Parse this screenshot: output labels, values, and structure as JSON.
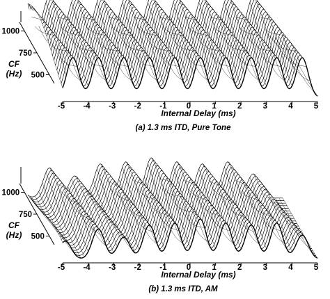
{
  "chart_data": [
    {
      "type": "surface",
      "caption": "(a) 1.3 ms ITD, Pure Tone",
      "xlabel": "Internal Delay (ms)",
      "ylabel": [
        "CF",
        "(Hz)"
      ],
      "x_ticks": [
        "-5",
        "-4",
        "-3",
        "-2",
        "-1",
        "0",
        "1",
        "2",
        "3",
        "4",
        "5"
      ],
      "y_ticks": [
        "1000",
        "750",
        "500"
      ],
      "xlim": [
        -5,
        5
      ],
      "y_tick_values": [
        1000,
        750,
        500
      ],
      "peaks_at_top_cf_ms": [
        -4.6,
        -3.6,
        -2.6,
        -1.6,
        -0.6,
        0.4,
        1.4,
        2.4,
        3.4,
        4.4
      ],
      "peak_heights": [
        1,
        1,
        1,
        1,
        1,
        1,
        1,
        1,
        1,
        1
      ]
    },
    {
      "type": "surface",
      "caption": "(b) 1.3 ms ITD, AM",
      "xlabel": "Internal Delay (ms)",
      "ylabel": [
        "CF",
        "(Hz)"
      ],
      "x_ticks": [
        "-5",
        "-4",
        "-3",
        "-2",
        "-1",
        "0",
        "1",
        "2",
        "3",
        "4",
        "5"
      ],
      "y_ticks": [
        "1000",
        "750",
        "500"
      ],
      "xlim": [
        -5,
        5
      ],
      "y_tick_values": [
        1000,
        750,
        500
      ],
      "peaks_at_top_cf_ms": [
        -4.9,
        -3.6,
        -2.6,
        -1.6,
        -0.6,
        0.4,
        1.4,
        2.4,
        3.4,
        4.4
      ],
      "peak_heights": [
        0.45,
        0.75,
        0.55,
        0.85,
        0.9,
        1,
        0.9,
        0.85,
        0.9,
        0.6
      ]
    }
  ]
}
